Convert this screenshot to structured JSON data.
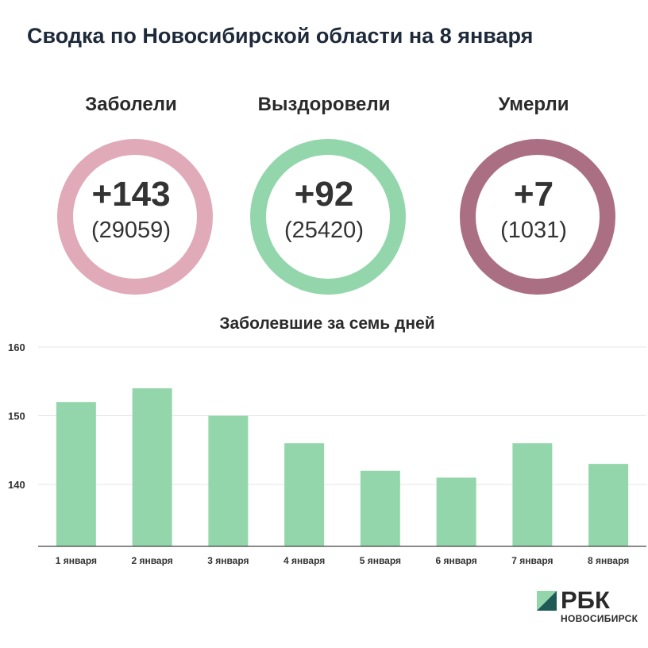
{
  "title": "Сводка по Новосибирской области на 8 января",
  "stats": [
    {
      "label": "Заболели",
      "delta": "+143",
      "total": "(29059)",
      "color": "#e0aab9"
    },
    {
      "label": "Выздоровели",
      "delta": "+92",
      "total": "(25420)",
      "color": "#93d6ab"
    },
    {
      "label": "Умерли",
      "delta": "+7",
      "total": "(1031)",
      "color": "#ab6f84"
    }
  ],
  "chart_data": {
    "type": "bar",
    "title": "Заболевшие за семь дней",
    "categories": [
      "1 января",
      "2 января",
      "3 января",
      "4 января",
      "5 января",
      "6 января",
      "7 января",
      "8 января"
    ],
    "values": [
      152,
      154,
      150,
      146,
      142,
      141,
      146,
      143
    ],
    "yticks": [
      140,
      150,
      160
    ],
    "ylim": [
      131,
      160
    ],
    "grid": true,
    "bar_color": "#93d6ab",
    "xlabel": "",
    "ylabel": ""
  },
  "logo": {
    "word": "РБК",
    "city": "НОВОСИБИРСК",
    "icon": "rbc-logo-icon"
  }
}
